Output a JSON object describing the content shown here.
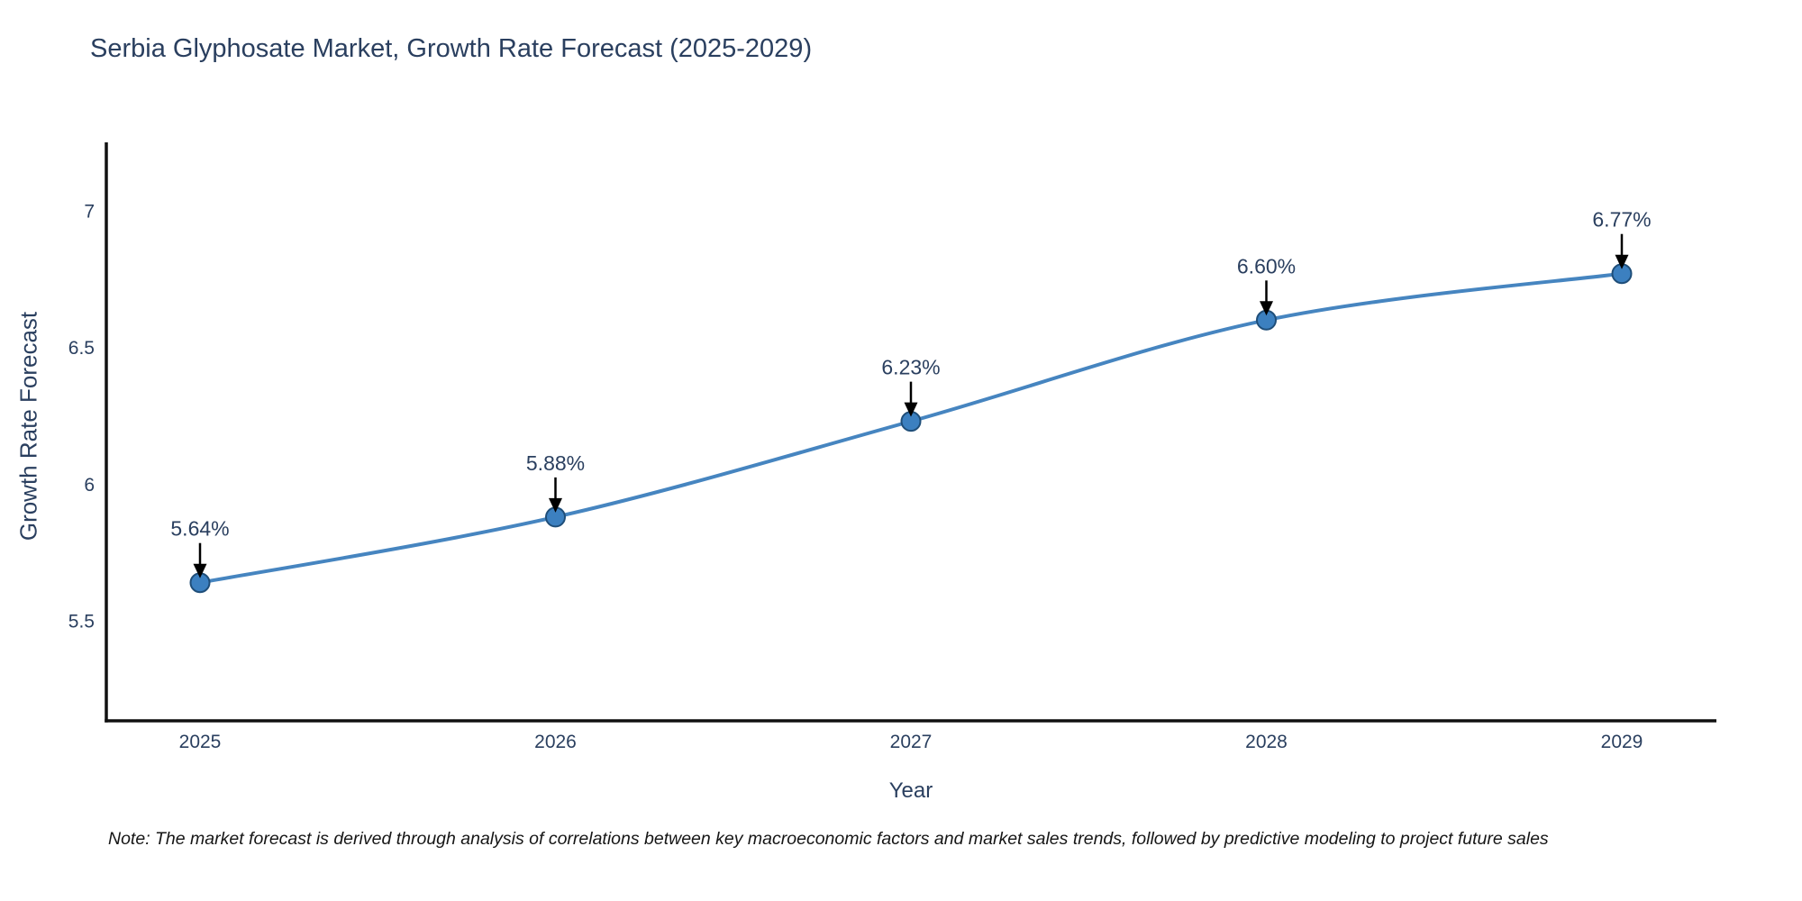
{
  "page": {
    "title": "Serbia Glyphosate Market, Growth Rate Forecast (2025-2029)",
    "note": "Note: The market forecast is derived through analysis of correlations between key macroeconomic factors and market sales trends, followed by predictive modeling to project future sales",
    "background": "#ffffff"
  },
  "chart_data": {
    "type": "line",
    "title": "Serbia Glyphosate Market, Growth Rate Forecast (2025-2029)",
    "xlabel": "Year",
    "ylabel": "Growth Rate Forecast",
    "x": [
      "2025",
      "2026",
      "2027",
      "2028",
      "2029"
    ],
    "values": [
      5.64,
      5.88,
      6.23,
      6.6,
      6.77
    ],
    "point_labels": [
      "5.64%",
      "5.88%",
      "6.23%",
      "6.60%",
      "6.77%"
    ],
    "ytick_labels": [
      "5.5",
      "6",
      "6.5",
      "7"
    ],
    "ytick_values": [
      5.5,
      6,
      6.5,
      7
    ],
    "ylim": [
      5.135,
      7.25
    ],
    "grid": false,
    "legend": "none",
    "line_shape": "spline",
    "annotation_style": "value-above-with-down-arrow",
    "colors": {
      "line": "#4685c0",
      "marker_fill": "#3c80c0",
      "marker_edge": "#1f4e79",
      "axis": "#111111",
      "tick_text": "#2a3f5f",
      "annotation_text": "#2a3f5f",
      "annotation_arrow": "#000000",
      "title_text": "#2a3f5f",
      "note_text": "#161616"
    }
  }
}
